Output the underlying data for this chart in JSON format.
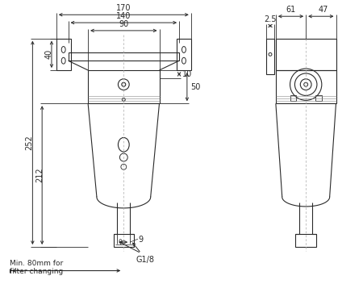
{
  "bg_color": "#ffffff",
  "line_color": "#2a2a2a",
  "dim_color": "#2a2a2a",
  "font_size": 7,
  "dimensions": {
    "top_170": "170",
    "top_140": "140",
    "top_90": "90",
    "left_40": "40",
    "left_252": "252",
    "left_212": "212",
    "right_10": "10",
    "right_50": "50",
    "right_9": "9",
    "bottom_g18": "G1/8",
    "bottom_min80": "Min. 80mm for\nfilter changing",
    "side_61": "61",
    "side_47": "47",
    "side_25": "2.5"
  }
}
